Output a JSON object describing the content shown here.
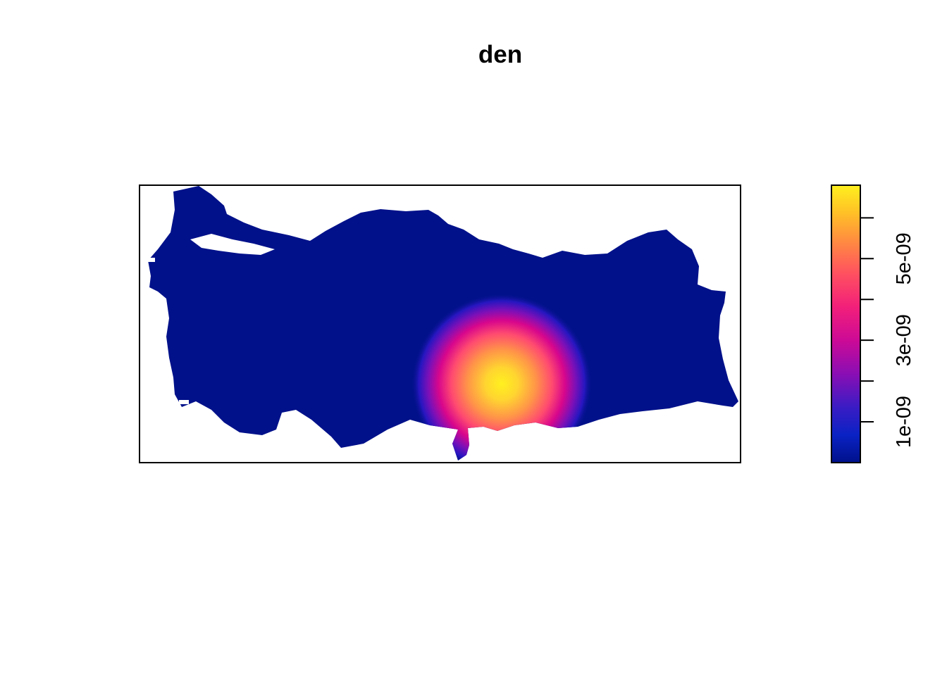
{
  "chart_data": {
    "type": "heatmap",
    "title": "den",
    "xlabel": "",
    "ylabel": "",
    "axes_shown": false,
    "colormap": "plasma",
    "colors": {
      "low": "#0D1A8C",
      "mid_low": "#1C1CA8",
      "mid": "#E0107C",
      "mid_high": "#FF6F4A",
      "high": "#FFF01F",
      "background_land": "#00118A"
    },
    "legend": {
      "placement": "right",
      "range": [
        0,
        6.8e-09
      ],
      "ticks": [
        {
          "value": 1e-09,
          "label": "1e-09",
          "labeled": true
        },
        {
          "value": 2e-09,
          "label": "",
          "labeled": false
        },
        {
          "value": 3e-09,
          "label": "3e-09",
          "labeled": true
        },
        {
          "value": 4e-09,
          "label": "",
          "labeled": false
        },
        {
          "value": 5e-09,
          "label": "5e-09",
          "labeled": true
        },
        {
          "value": 6e-09,
          "label": "",
          "labeled": false
        }
      ]
    },
    "peak": {
      "value": 6.8e-09
    }
  }
}
